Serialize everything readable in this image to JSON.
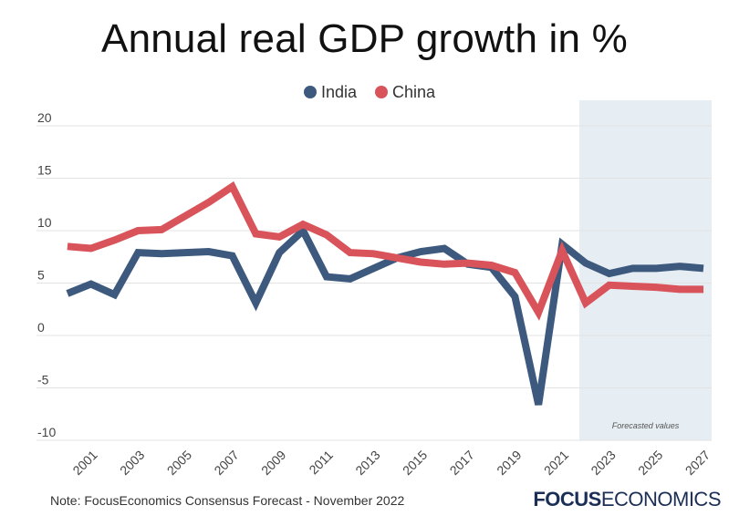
{
  "chart_data": {
    "type": "line",
    "title": "Annual real GDP growth in %",
    "x": [
      2000,
      2001,
      2002,
      2003,
      2004,
      2005,
      2006,
      2007,
      2008,
      2009,
      2010,
      2011,
      2012,
      2013,
      2014,
      2015,
      2016,
      2017,
      2018,
      2019,
      2020,
      2021,
      2022,
      2023,
      2024,
      2025,
      2026,
      2027
    ],
    "x_tick_labels": [
      "2001",
      "2003",
      "2005",
      "2007",
      "2009",
      "2011",
      "2013",
      "2015",
      "2017",
      "2019",
      "2021",
      "2023",
      "2025",
      "2027"
    ],
    "x_tick_values": [
      2001,
      2003,
      2005,
      2007,
      2009,
      2011,
      2013,
      2015,
      2017,
      2019,
      2021,
      2023,
      2025,
      2027
    ],
    "y_tick_labels": [
      "20",
      "15",
      "10",
      "5",
      "0",
      "-5",
      "-10"
    ],
    "y_tick_values": [
      20,
      15,
      10,
      5,
      0,
      -5,
      -10
    ],
    "ylim": [
      -10,
      20
    ],
    "xlim": [
      1999.85,
      2027.35
    ],
    "grid": true,
    "forecast_start": 2022,
    "forecast_label": "Forecasted values",
    "legend_position": "top-center",
    "series": [
      {
        "name": "India",
        "color": "#3d5a7e",
        "values": [
          4.0,
          4.9,
          3.9,
          7.9,
          7.8,
          7.9,
          8.0,
          7.6,
          3.1,
          7.9,
          10.0,
          5.6,
          5.4,
          6.4,
          7.4,
          8.0,
          8.3,
          6.8,
          6.5,
          3.7,
          -6.6,
          8.7,
          6.9,
          5.9,
          6.4,
          6.4,
          6.6,
          6.4
        ]
      },
      {
        "name": "China",
        "color": "#d9535a",
        "values": [
          8.5,
          8.3,
          9.1,
          10.0,
          10.1,
          11.4,
          12.7,
          14.2,
          9.7,
          9.4,
          10.6,
          9.6,
          7.9,
          7.8,
          7.4,
          7.0,
          6.8,
          6.9,
          6.7,
          6.0,
          2.2,
          8.1,
          3.1,
          4.8,
          4.7,
          4.6,
          4.4,
          4.4
        ]
      }
    ]
  },
  "note": "Note: FocusEconomics Consensus Forecast - November 2022",
  "brand": {
    "part1": "FOCUS",
    "part2": "ECONOMICS"
  },
  "colors": {
    "forecast_band": "#e6edf3",
    "grid": "#e3e3e3",
    "brand": "#1b2f56"
  }
}
